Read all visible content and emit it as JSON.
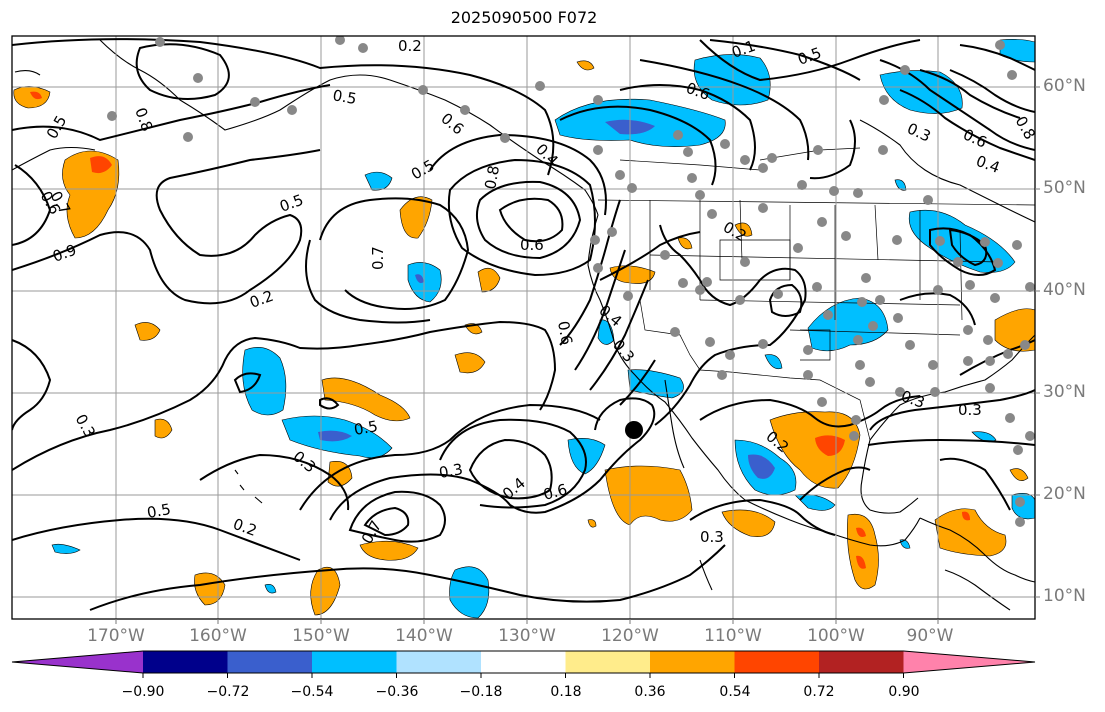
{
  "title": "2025090500 F072",
  "lon_labels": [
    "170°W",
    "160°W",
    "150°W",
    "140°W",
    "130°W",
    "120°W",
    "110°W",
    "100°W",
    "90°W"
  ],
  "lat_labels": [
    "60°N",
    "50°N",
    "40°N",
    "30°N",
    "20°N",
    "10°N"
  ],
  "colorbar": {
    "ticks": [
      "−0.90",
      "−0.72",
      "−0.54",
      "−0.36",
      "−0.18",
      "0.18",
      "0.36",
      "0.54",
      "0.72",
      "0.90"
    ],
    "colors": [
      "#9932cc",
      "#00008b",
      "#3a5fcd",
      "#00bfff",
      "#b0e2ff",
      "#ffffff",
      "#ffec8b",
      "#ffa500",
      "#ff4500",
      "#b22222",
      "#ff82ab"
    ]
  },
  "contour_labels": [
    "0.2",
    "0.1",
    "0.5",
    "0.6",
    "0.3",
    "0.6",
    "0.4",
    "0.8",
    "0.5",
    "0.5",
    "0.6",
    "0.7",
    "0.8",
    "0.5",
    "0.8",
    "0.6",
    "0.4",
    "0.9",
    "0.5",
    "0.7",
    "0.2",
    "0.6",
    "0.6",
    "0.4",
    "0.3",
    "0.5",
    "0.3",
    "0.3",
    "0.4",
    "0.6",
    "0.7",
    "0.5",
    "0.2",
    "0.3",
    "0.3",
    "0.2",
    "0.3",
    "0.3",
    "0.2"
  ],
  "marker_label": ""
}
